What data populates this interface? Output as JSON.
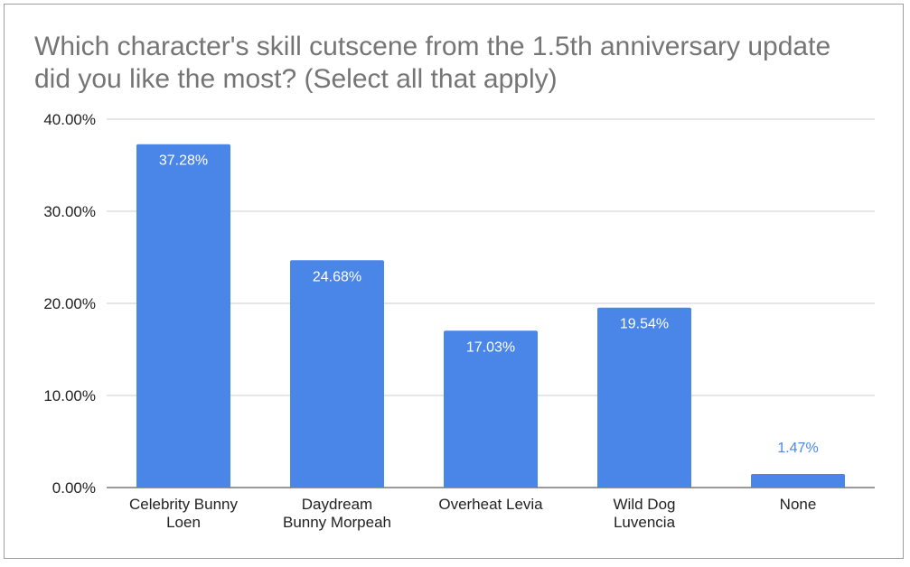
{
  "chart_data": {
    "type": "bar",
    "title": "Which character's skill cutscene from the 1.5th anniversary update did you like the most? (Select all that apply)",
    "xlabel": "",
    "ylabel": "",
    "categories": [
      [
        "Celebrity Bunny",
        "Loen"
      ],
      [
        "Daydream",
        "Bunny Morpeah"
      ],
      [
        "Overheat Levia"
      ],
      [
        "Wild Dog",
        "Luvencia"
      ],
      [
        "None"
      ]
    ],
    "values": [
      37.28,
      24.68,
      17.03,
      19.54,
      1.47
    ],
    "data_labels": [
      "37.28%",
      "24.68%",
      "17.03%",
      "19.54%",
      "1.47%"
    ],
    "y_ticks": [
      0,
      10,
      20,
      30,
      40
    ],
    "y_tick_labels": [
      "0.00%",
      "10.00%",
      "20.00%",
      "30.00%",
      "40.00%"
    ],
    "ylim": [
      0,
      40
    ],
    "grid": true,
    "bar_color": "#4a86e8",
    "label_inside_color": "#ffffff",
    "label_outside_color": "#4a86e8"
  }
}
